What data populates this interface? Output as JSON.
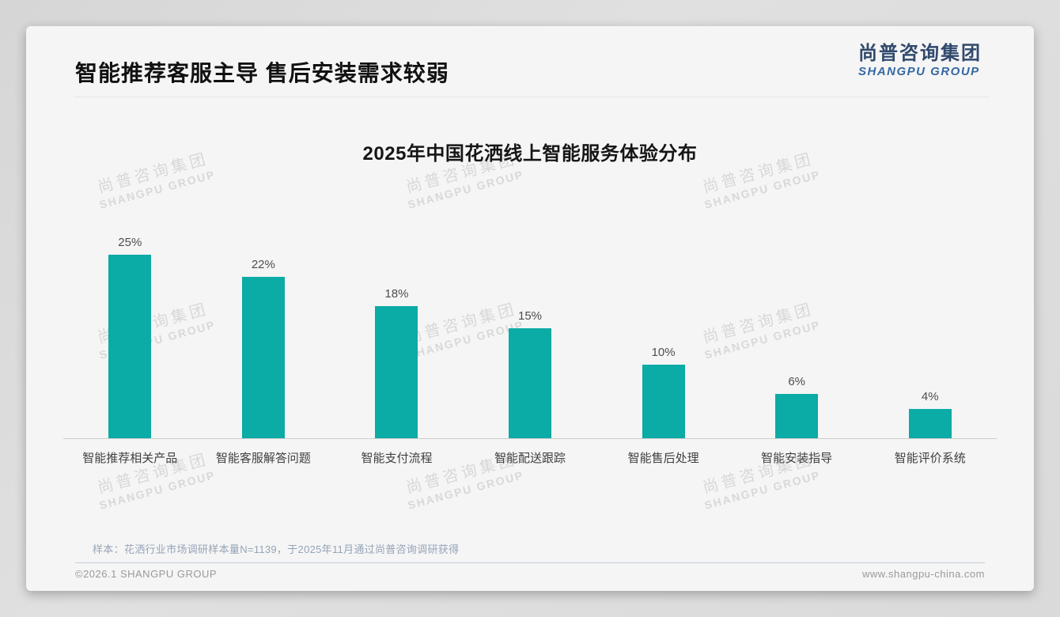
{
  "header": {
    "title": "智能推荐客服主导 售后安装需求较弱"
  },
  "logo": {
    "chinese": "尚普咨询集团",
    "english": "SHANGPU GROUP"
  },
  "watermark": {
    "line1": "尚普咨询集团",
    "line2": "SHANGPU GROUP"
  },
  "chart_data": {
    "type": "bar",
    "title": "2025年中国花洒线上智能服务体验分布",
    "categories": [
      "智能推荐相关产品",
      "智能客服解答问题",
      "智能支付流程",
      "智能配送跟踪",
      "智能售后处理",
      "智能安装指导",
      "智能评价系统"
    ],
    "values": [
      25,
      22,
      18,
      15,
      10,
      6,
      4
    ],
    "value_labels": [
      "25%",
      "22%",
      "18%",
      "15%",
      "10%",
      "6%",
      "4%"
    ],
    "unit": "%",
    "bar_color": "#0baba6",
    "ylim": [
      0,
      27
    ],
    "grid": false,
    "legend": false,
    "baseline_axis": true
  },
  "footer": {
    "sample_note": "样本：花洒行业市场调研样本量N=1139，于2025年11月通过尚普咨询调研获得",
    "copyright": "©2026.1 SHANGPU GROUP",
    "website": "www.shangpu-china.com"
  },
  "colors": {
    "bar_teal": "#0baba6",
    "logo_navy": "#31496d",
    "logo_blue": "#3568a2",
    "note_blue_gray": "#96a4b8",
    "card_bg": "#f5f5f5",
    "page_bg": "#dcdcdc"
  }
}
